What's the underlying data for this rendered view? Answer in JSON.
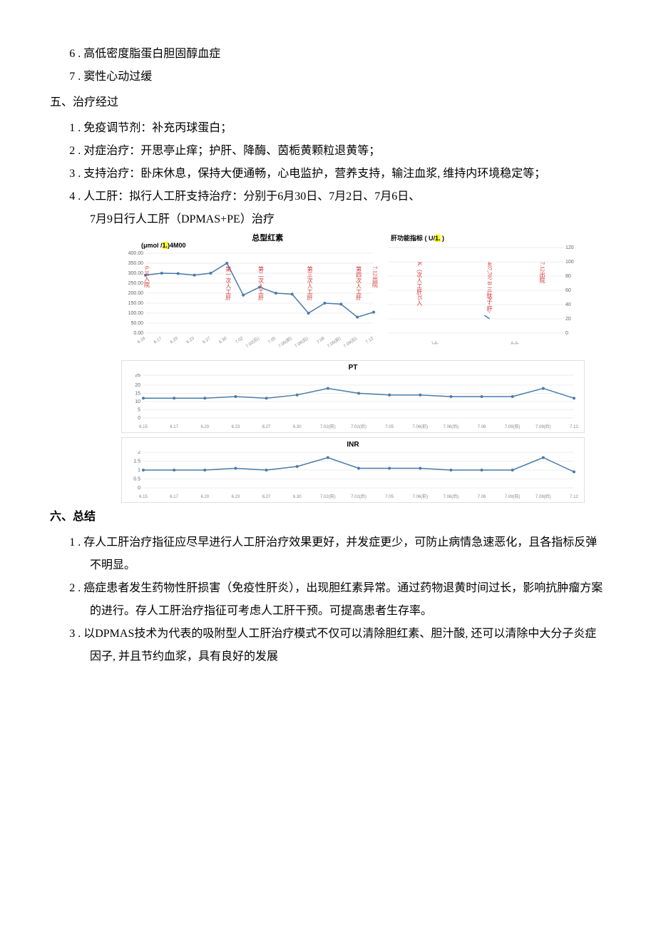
{
  "diag": {
    "item6_num": "6",
    "item6_text": " . 高低密度脂蛋白胆固醇血症",
    "item7_num": "7",
    "item7_text": " . 窦性心动过缓"
  },
  "section5": {
    "heading": "五、治疗经过",
    "item1_num": "1",
    "item1_text": " . 免疫调节剂：补充丙球蛋白；",
    "item2_num": "2",
    "item2_text": " . 对症治疗：开思亭止痒；护肝、降酶、茵栀黄颗粒退黄等；",
    "item3_num": "3",
    "item3_text": " . 支持治疗：卧床休息，保持大便通畅，心电监护，营养支持，输注血浆, 维持内环境稳定等；",
    "item4_num": "4",
    "item4_text": " . 人工肝：拟行人工肝支持治疗：分别于6月30日、7月2日、7月6日、",
    "item4_cont": "7月9日行人工肝（DPMAS+PE）治疗"
  },
  "charts": {
    "bilirubin": {
      "title": "总型红素",
      "unit_pre": "(μmol /",
      "unit_hl": "1.",
      "unit_post": ")4M00",
      "ylim": [
        0,
        400
      ],
      "ytick_step": 50,
      "yticks": [
        "0.00",
        "50.00",
        "100.00",
        "150.00",
        "200.00",
        "250.00",
        "300.00",
        "350.00",
        "400.00"
      ],
      "x_labels": [
        "6.16",
        "6.17",
        "6.20",
        "6.23",
        "6.27",
        "6.30",
        "7.02",
        "7.02(后)",
        "7.05",
        "7.06(前)",
        "7.06(后)",
        "7.08",
        "7.09(前)",
        "7.09(后)",
        "7.12"
      ],
      "values": [
        290,
        300,
        298,
        290,
        300,
        350,
        190,
        230,
        200,
        195,
        100,
        150,
        145,
        80,
        105
      ],
      "annotations": [
        {
          "idx": 0,
          "text": "6.16入院"
        },
        {
          "idx": 5,
          "text": "第一次人工肝"
        },
        {
          "idx": 7,
          "text": "第二次人工肝"
        },
        {
          "idx": 10,
          "text": "第三次人工肝"
        },
        {
          "idx": 13,
          "text": "第四次人工肝"
        },
        {
          "idx": 14,
          "text": "7.12出院"
        }
      ],
      "line_color": "#4a7ba6",
      "grid_color": "#eeeeee",
      "background": "#ffffff"
    },
    "liver": {
      "title_pre": "肝功能指标 ( U/",
      "title_hl": "1.",
      "title_post": " )",
      "ylim": [
        0,
        120
      ],
      "ytick_step": 20,
      "yticks": [
        "0",
        "20",
        "40",
        "60",
        "80",
        "100",
        "120"
      ],
      "annotations": [
        {
          "x": 0.18,
          "text": "K（次人工肝35入"
        },
        {
          "x": 0.58,
          "text": "407,70? B 三肽子-肝-"
        },
        {
          "x": 0.88,
          "text": "7.12出院"
        }
      ],
      "x_footer_left": "\\-A-",
      "x_footer_right": "A-A-",
      "line_color": "#4a7ba6",
      "background": "#ffffff"
    },
    "pt": {
      "title": "PT",
      "ylim": [
        0,
        26
      ],
      "yticks": [
        "0",
        "5",
        "10",
        "15",
        "20",
        "26"
      ],
      "x_labels": [
        "6.15",
        "6.17",
        "6.20",
        "6.23",
        "6.27",
        "6.30",
        "7.02(前)",
        "7.02(后)",
        "7.05",
        "7.06(前)",
        "7.06(后)",
        "7.08",
        "7.09(前)",
        "7.09(后)",
        "7.12"
      ],
      "values": [
        12,
        12,
        12,
        13,
        12,
        14,
        18,
        15,
        14,
        14,
        13,
        13,
        13,
        18,
        12
      ],
      "line_color": "#4a7ba6",
      "grid_color": "#eeeeee"
    },
    "inr": {
      "title": "INR",
      "ylim": [
        0,
        2
      ],
      "yticks": [
        "0",
        "0.5",
        "1",
        "1.5",
        "2"
      ],
      "x_labels": [
        "6.15",
        "6.17",
        "6.20",
        "6.23",
        "6.27",
        "6.30",
        "7.02(前)",
        "7.02(后)",
        "7.05",
        "7.06(前)",
        "7.06(后)",
        "7.08",
        "7.09(前)",
        "7.09(后)",
        "7.12"
      ],
      "values": [
        1.0,
        1.0,
        1.0,
        1.1,
        1.0,
        1.2,
        1.7,
        1.1,
        1.1,
        1.1,
        1.0,
        1.0,
        1.0,
        1.7,
        0.9
      ],
      "line_color": "#4a7ba6",
      "grid_color": "#eeeeee"
    }
  },
  "section6": {
    "heading": "六、总结",
    "item1_num": "1",
    "item1_text": " . 存人工肝治疗指征应尽早进行人工肝治疗效果更好，并发症更少，可防止病情急速恶化，且各指标反弹不明显。",
    "item2_num": "2",
    "item2_text": " . 癌症患者发生药物性肝损害（免疫性肝炎），出现胆红素异常。通过药物退黄时间过长，影响抗肿瘤方案的进行。存人工肝治疗指征可考虑人工肝干预。可提高患者生存率。",
    "item3_num": "3",
    "item3_text": " . 以DPMAS技术为代表的吸附型人工肝治疗模式不仅可以清除胆红素、胆汁酸, 还可以清除中大分子炎症因子, 并且节约血浆，具有良好的发展"
  }
}
